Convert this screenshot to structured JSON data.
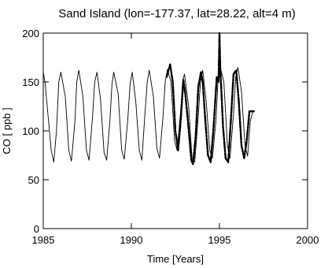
{
  "chart_data": {
    "type": "line",
    "title": "Sand Island (lon=-177.37, lat=28.22, alt=4 m)",
    "xlabel": "Time [Years]",
    "ylabel": "CO [ ppb ]",
    "xlim": [
      1985,
      2000
    ],
    "ylim": [
      0,
      200
    ],
    "xticks": [
      1985,
      1990,
      1995,
      2000
    ],
    "yticks": [
      0,
      50,
      100,
      150,
      200
    ],
    "grid": false,
    "colors": {
      "line": "#000000",
      "background": "#ffffff"
    },
    "series": [
      {
        "style": "thin-solid",
        "x": [
          1985.0,
          1985.1,
          1985.25,
          1985.45,
          1985.6,
          1985.75,
          1985.88,
          1986.0,
          1986.25,
          1986.45,
          1986.6,
          1986.8,
          1986.9,
          1987.02,
          1987.25,
          1987.45,
          1987.6,
          1987.8,
          1987.92,
          1988.05,
          1988.25,
          1988.45,
          1988.6,
          1988.78,
          1988.9,
          1989.0,
          1989.25,
          1989.45,
          1989.6,
          1989.8,
          1989.93,
          1990.05,
          1990.25,
          1990.45,
          1990.6,
          1990.75,
          1990.9,
          1991.02,
          1991.25,
          1991.45,
          1991.6,
          1991.8,
          1991.92,
          1992.05,
          1992.25,
          1992.45,
          1992.6,
          1992.8,
          1992.92,
          1993.02,
          1993.25,
          1993.45,
          1993.6,
          1993.8,
          1993.92,
          1994.05,
          1994.25,
          1994.45,
          1994.6,
          1994.8,
          1994.92,
          1995.05,
          1995.25,
          1995.45,
          1995.6,
          1995.8,
          1995.92,
          1996.05,
          1996.25,
          1996.45,
          1996.6,
          1996.75,
          1996.9,
          1997.0
        ],
        "y": [
          160,
          150,
          120,
          80,
          68,
          100,
          150,
          160,
          135,
          80,
          69,
          110,
          150,
          162,
          135,
          80,
          70,
          115,
          150,
          160,
          132,
          78,
          70,
          110,
          148,
          160,
          138,
          80,
          71,
          112,
          148,
          160,
          130,
          80,
          70,
          112,
          150,
          162,
          135,
          82,
          72,
          115,
          150,
          163,
          150,
          90,
          80,
          120,
          152,
          158,
          125,
          70,
          68,
          115,
          150,
          162,
          130,
          80,
          72,
          110,
          152,
          165,
          150,
          85,
          72,
          118,
          155,
          165,
          140,
          85,
          74,
          110,
          120,
          120
        ]
      },
      {
        "style": "thick-dashed",
        "x": [
          1992.0,
          1992.2,
          1992.35,
          1992.5,
          1992.65,
          1992.8,
          1992.95,
          1993.05,
          1993.2,
          1993.4,
          1993.5,
          1993.65,
          1993.8,
          1993.95,
          1994.05,
          1994.2,
          1994.35,
          1994.5,
          1994.65,
          1994.85,
          1994.95,
          1995.0,
          1995.05,
          1995.1,
          1995.2,
          1995.35,
          1995.5,
          1995.65,
          1995.8,
          1995.95,
          1996.1,
          1996.25,
          1996.4,
          1996.55,
          1996.7,
          1996.85,
          1996.95
        ],
        "y": [
          155,
          168,
          150,
          100,
          80,
          110,
          152,
          140,
          112,
          70,
          66,
          95,
          145,
          160,
          150,
          110,
          75,
          68,
          100,
          155,
          150,
          200,
          162,
          145,
          105,
          72,
          68,
          112,
          158,
          162,
          130,
          85,
          72,
          90,
          120,
          120,
          120
        ]
      }
    ]
  }
}
